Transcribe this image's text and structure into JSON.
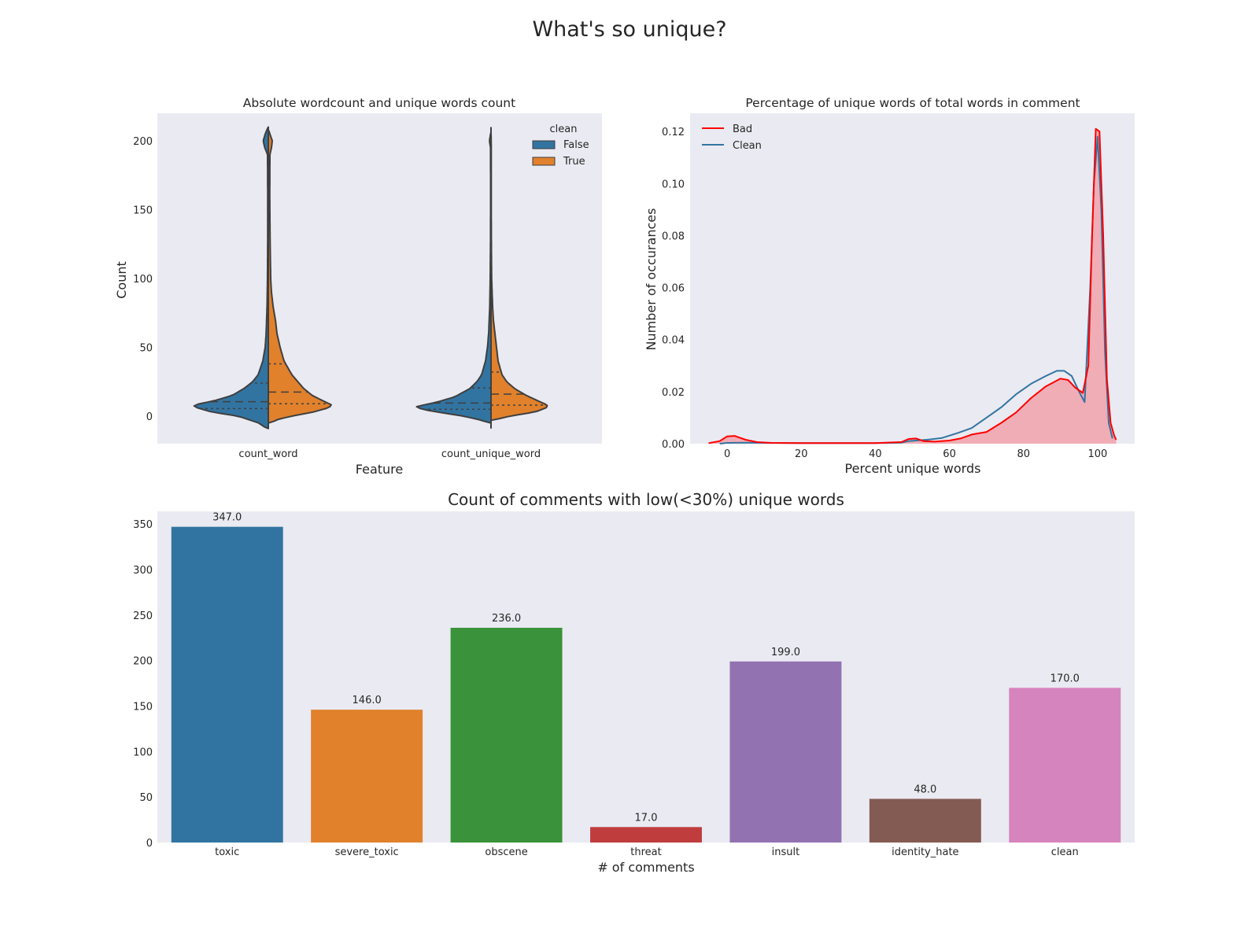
{
  "figure": {
    "suptitle": "What's so unique?"
  },
  "chart_data": [
    {
      "type": "violin",
      "title": "Absolute wordcount and unique words count",
      "xlabel": "Feature",
      "ylabel": "Count",
      "categories": [
        "count_word",
        "count_unique_word"
      ],
      "ylim": [
        -20,
        220
      ],
      "yticks": [
        0,
        50,
        100,
        150,
        200
      ],
      "legend": {
        "title": "clean",
        "position": "top-right",
        "entries": [
          {
            "label": "False",
            "color": "#3274a1"
          },
          {
            "label": "True",
            "color": "#e1812c"
          }
        ]
      },
      "series": [
        {
          "name": "False",
          "color": "#3274a1",
          "profiles": [
            [
              [
                -9,
                0.02
              ],
              [
                -5,
                0.12
              ],
              [
                0,
                0.38
              ],
              [
                3,
                0.72
              ],
              [
                6,
                0.9
              ],
              [
                8,
                0.96
              ],
              [
                11,
                0.7
              ],
              [
                15,
                0.46
              ],
              [
                20,
                0.31
              ],
              [
                25,
                0.2
              ],
              [
                30,
                0.13
              ],
              [
                40,
                0.07
              ],
              [
                50,
                0.04
              ],
              [
                60,
                0.028
              ],
              [
                80,
                0.016
              ],
              [
                100,
                0.011
              ],
              [
                130,
                0.008
              ],
              [
                160,
                0.008
              ],
              [
                190,
                0.01
              ],
              [
                195,
                0.045
              ],
              [
                200,
                0.065
              ],
              [
                205,
                0.04
              ],
              [
                210,
                0.003
              ]
            ],
            [
              [
                -5,
                0.03
              ],
              [
                -3,
                0.12
              ],
              [
                0,
                0.35
              ],
              [
                3,
                0.68
              ],
              [
                5,
                0.88
              ],
              [
                7,
                0.95
              ],
              [
                10,
                0.7
              ],
              [
                14,
                0.46
              ],
              [
                20,
                0.27
              ],
              [
                25,
                0.18
              ],
              [
                30,
                0.12
              ],
              [
                40,
                0.07
              ],
              [
                50,
                0.045
              ],
              [
                60,
                0.03
              ],
              [
                80,
                0.016
              ],
              [
                100,
                0.01
              ],
              [
                130,
                0.006
              ],
              [
                160,
                0.005
              ],
              [
                195,
                0.006
              ],
              [
                200,
                0.02
              ],
              [
                206,
                0.003
              ]
            ]
          ],
          "quartiles": [
            [
              5.5,
              10.5,
              24
            ],
            [
              5,
              9.5,
              20.5
            ]
          ]
        },
        {
          "name": "True",
          "color": "#e1812c",
          "profiles": [
            [
              [
                -5,
                0.02
              ],
              [
                -2,
                0.14
              ],
              [
                0,
                0.3
              ],
              [
                3,
                0.57
              ],
              [
                6,
                0.76
              ],
              [
                8,
                0.81
              ],
              [
                11,
                0.7
              ],
              [
                15,
                0.56
              ],
              [
                20,
                0.45
              ],
              [
                30,
                0.3
              ],
              [
                40,
                0.2
              ],
              [
                50,
                0.15
              ],
              [
                60,
                0.11
              ],
              [
                70,
                0.09
              ],
              [
                80,
                0.06
              ],
              [
                90,
                0.04
              ],
              [
                100,
                0.03
              ],
              [
                130,
                0.022
              ],
              [
                160,
                0.018
              ],
              [
                190,
                0.02
              ],
              [
                195,
                0.04
              ],
              [
                200,
                0.05
              ],
              [
                205,
                0.02
              ],
              [
                208,
                0.003
              ]
            ],
            [
              [
                -3,
                0.02
              ],
              [
                0,
                0.24
              ],
              [
                3,
                0.56
              ],
              [
                6,
                0.7
              ],
              [
                8,
                0.72
              ],
              [
                11,
                0.6
              ],
              [
                15,
                0.45
              ],
              [
                20,
                0.3
              ],
              [
                25,
                0.2
              ],
              [
                30,
                0.14
              ],
              [
                40,
                0.09
              ],
              [
                50,
                0.07
              ],
              [
                60,
                0.05
              ],
              [
                70,
                0.03
              ],
              [
                80,
                0.02
              ],
              [
                100,
                0.008
              ],
              [
                120,
                0.005
              ],
              [
                150,
                0.003
              ],
              [
                180,
                0.003
              ],
              [
                195,
                0.003
              ],
              [
                205,
                0.001
              ]
            ]
          ],
          "quartiles": [
            [
              9,
              17.5,
              38
            ],
            [
              8,
              16,
              32
            ]
          ]
        }
      ]
    },
    {
      "type": "line",
      "title": "Percentage of unique words of total words in comment",
      "xlabel": "Percent unique words",
      "ylabel": "Number of occurances",
      "xlim": [
        -10,
        110
      ],
      "ylim": [
        0,
        0.127
      ],
      "xticks": [
        0,
        20,
        40,
        60,
        80,
        100
      ],
      "yticks": [
        0.0,
        0.02,
        0.04,
        0.06,
        0.08,
        0.1,
        0.12
      ],
      "legend": {
        "position": "top-left"
      },
      "series": [
        {
          "name": "Bad",
          "color": "#ff0000",
          "fill": "#f0adb5",
          "x": [
            -5,
            -2,
            0,
            2,
            5,
            8,
            12,
            20,
            30,
            40,
            47,
            49,
            51,
            53,
            56,
            60,
            63,
            66,
            70,
            74,
            78,
            82,
            86,
            90,
            92,
            94,
            96,
            97.5,
            98.5,
            99.5,
            100.5,
            101.5,
            102.5,
            103.5,
            104.5,
            105
          ],
          "y": [
            0.0002,
            0.001,
            0.0028,
            0.003,
            0.0015,
            0.0006,
            0.0003,
            0.0002,
            0.0002,
            0.0002,
            0.0006,
            0.0018,
            0.002,
            0.001,
            0.0008,
            0.0012,
            0.002,
            0.0035,
            0.0045,
            0.008,
            0.012,
            0.0175,
            0.022,
            0.025,
            0.0245,
            0.0215,
            0.0195,
            0.03,
            0.08,
            0.121,
            0.12,
            0.08,
            0.025,
            0.008,
            0.003,
            0.0015
          ]
        },
        {
          "name": "Clean",
          "color": "#3274a1",
          "x": [
            -2,
            0,
            5,
            10,
            20,
            30,
            40,
            47,
            49,
            51,
            54,
            58,
            62,
            66,
            70,
            74,
            78,
            82,
            86,
            89,
            91,
            93,
            95,
            96.5,
            98,
            99,
            100,
            101,
            102,
            103,
            104
          ],
          "y": [
            0,
            0.0003,
            0.0004,
            0.0003,
            0.0002,
            0.0002,
            0.0002,
            0.0004,
            0.001,
            0.0012,
            0.0015,
            0.0022,
            0.004,
            0.006,
            0.01,
            0.014,
            0.019,
            0.023,
            0.026,
            0.028,
            0.028,
            0.026,
            0.02,
            0.016,
            0.06,
            0.1,
            0.118,
            0.09,
            0.035,
            0.008,
            0.002
          ]
        }
      ]
    },
    {
      "type": "bar",
      "title": "Count of comments with low(<30%) unique words",
      "xlabel": "# of comments",
      "ylabel": "",
      "categories": [
        "toxic",
        "severe_toxic",
        "obscene",
        "threat",
        "insult",
        "identity_hate",
        "clean"
      ],
      "values": [
        347,
        146,
        236,
        17,
        199,
        48,
        170
      ],
      "value_labels": [
        "347.0",
        "146.0",
        "236.0",
        "17.0",
        "199.0",
        "48.0",
        "170.0"
      ],
      "colors": [
        "#3274a1",
        "#e1812c",
        "#3a923a",
        "#c03d3e",
        "#9372b2",
        "#845b53",
        "#d684bd"
      ],
      "ylim": [
        0,
        364
      ],
      "yticks": [
        0,
        50,
        100,
        150,
        200,
        250,
        300,
        350
      ]
    }
  ]
}
